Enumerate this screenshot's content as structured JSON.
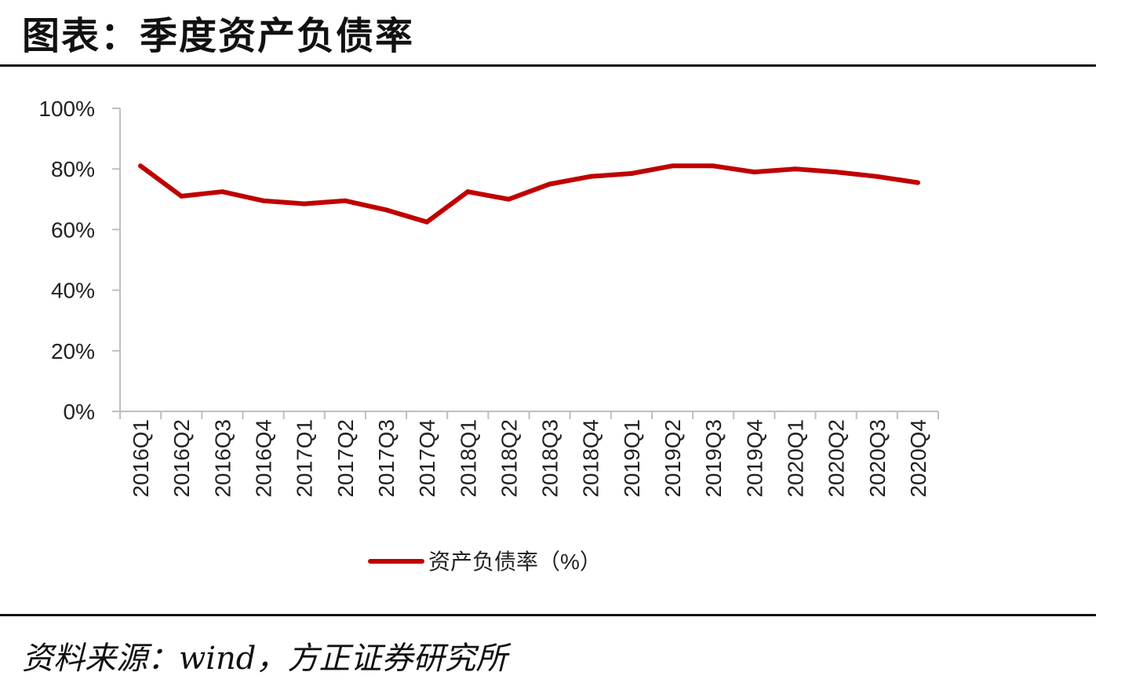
{
  "title": "图表：季度资产负债率",
  "source": "资料来源：wind，方正证券研究所",
  "chart_data": {
    "type": "line",
    "categories": [
      "2016Q1",
      "2016Q2",
      "2016Q3",
      "2016Q4",
      "2017Q1",
      "2017Q2",
      "2017Q3",
      "2017Q4",
      "2018Q1",
      "2018Q2",
      "2018Q3",
      "2018Q4",
      "2019Q1",
      "2019Q2",
      "2019Q3",
      "2019Q4",
      "2020Q1",
      "2020Q2",
      "2020Q3",
      "2020Q4"
    ],
    "series": [
      {
        "name": "资产负债率（%）",
        "color": "#C00000",
        "values": [
          81,
          71,
          72.5,
          69.5,
          68.5,
          69.5,
          66.5,
          62.5,
          72.5,
          70,
          75,
          77.5,
          78.5,
          81,
          81,
          79,
          80,
          79,
          77.5,
          75.5
        ]
      }
    ],
    "yticks": [
      "0%",
      "20%",
      "40%",
      "60%",
      "80%",
      "100%"
    ],
    "ylim": [
      0,
      100
    ],
    "legend_position": "bottom",
    "grid": false
  }
}
